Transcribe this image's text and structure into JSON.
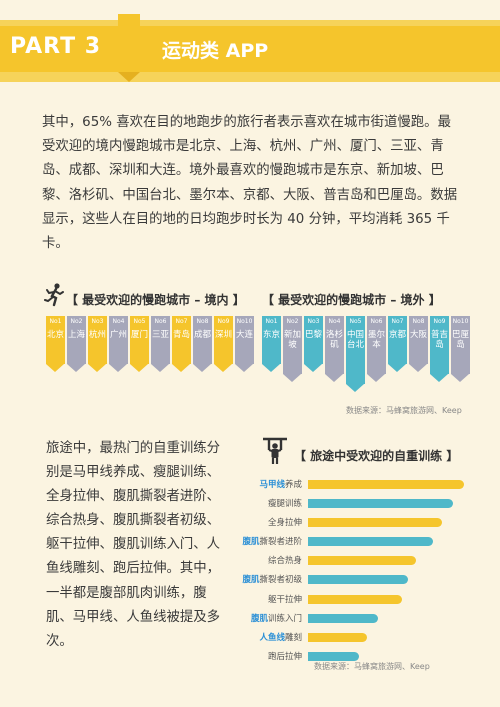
{
  "header": {
    "part": "PART 3",
    "title": "运动类 APP"
  },
  "intro_text": "其中，65% 喜欢在目的地跑步的旅行者表示喜欢在城市街道慢跑。最受欢迎的境内慢跑城市是北京、上海、杭州、广州、厦门、三亚、青岛、成都、深圳和大连。境外最喜欢的慢跑城市是东京、新加坡、巴黎、洛杉矶、中国台北、墨尔本、京都、大阪、普吉岛和巴厘岛。数据显示，这些人在目的地的日均跑步时长为 40 分钟，平均消耗 365 千卡。",
  "domestic": {
    "title": "【 最受欢迎的慢跑城市 – 境内 】",
    "icon": "runner-icon",
    "items": [
      {
        "no": "No1",
        "name": "北京",
        "color": "#f5c52c"
      },
      {
        "no": "No2",
        "name": "上海",
        "color": "#a6a7ba"
      },
      {
        "no": "No3",
        "name": "杭州",
        "color": "#f5c52c"
      },
      {
        "no": "No4",
        "name": "广州",
        "color": "#a6a7ba"
      },
      {
        "no": "No5",
        "name": "厦门",
        "color": "#f5c52c"
      },
      {
        "no": "No6",
        "name": "三亚",
        "color": "#a6a7ba"
      },
      {
        "no": "No7",
        "name": "青岛",
        "color": "#f5c52c"
      },
      {
        "no": "No8",
        "name": "成都",
        "color": "#a6a7ba"
      },
      {
        "no": "No9",
        "name": "深圳",
        "color": "#f5c52c"
      },
      {
        "no": "No10",
        "name": "大连",
        "color": "#a6a7ba"
      }
    ]
  },
  "overseas": {
    "title": "【 最受欢迎的慢跑城市 – 境外 】",
    "items": [
      {
        "no": "No1",
        "name": "东京",
        "color": "#4fb8c9"
      },
      {
        "no": "No2",
        "name": "新加坡",
        "color": "#a6a7ba"
      },
      {
        "no": "No3",
        "name": "巴黎",
        "color": "#4fb8c9"
      },
      {
        "no": "No4",
        "name": "洛杉矶",
        "color": "#a6a7ba"
      },
      {
        "no": "No5",
        "name": "中国台北",
        "color": "#4fb8c9"
      },
      {
        "no": "No6",
        "name": "墨尔本",
        "color": "#a6a7ba"
      },
      {
        "no": "No7",
        "name": "京都",
        "color": "#4fb8c9"
      },
      {
        "no": "No8",
        "name": "大阪",
        "color": "#a6a7ba"
      },
      {
        "no": "No9",
        "name": "普吉岛",
        "color": "#4fb8c9"
      },
      {
        "no": "No10",
        "name": "巴厘岛",
        "color": "#a6a7ba"
      }
    ]
  },
  "source1": "数据来源：马蜂窝旅游网、Keep",
  "body_text": "旅途中，最热门的自重训练分别是马甲线养成、瘦腿训练、全身拉伸、腹肌撕裂者进阶、综合热身、腹肌撕裂者初级、躯干拉伸、腹肌训练入门、人鱼线雕刻、跑后拉伸。其中，一半都是腹部肌肉训练，腹肌、马甲线、人鱼线被提及多次。",
  "training": {
    "title": "【 旅途中受欢迎的自重训练 】",
    "icon": "pullup-icon",
    "items": [
      {
        "hl": "马甲线",
        "rest": "养成",
        "value": 100,
        "color": "#f5c52c"
      },
      {
        "hl": "",
        "rest": "瘦腿训练",
        "value": 93,
        "color": "#4fb8c9"
      },
      {
        "hl": "",
        "rest": "全身拉伸",
        "value": 86,
        "color": "#f5c52c"
      },
      {
        "hl": "腹肌",
        "rest": "撕裂者进阶",
        "value": 80,
        "color": "#4fb8c9"
      },
      {
        "hl": "",
        "rest": "综合热身",
        "value": 69,
        "color": "#f5c52c"
      },
      {
        "hl": "腹肌",
        "rest": "撕裂者初级",
        "value": 64,
        "color": "#4fb8c9"
      },
      {
        "hl": "",
        "rest": "躯干拉伸",
        "value": 60,
        "color": "#f5c52c"
      },
      {
        "hl": "腹肌",
        "rest": "训练入门",
        "value": 45,
        "color": "#4fb8c9"
      },
      {
        "hl": "人鱼线",
        "rest": "雕刻",
        "value": 38,
        "color": "#f5c52c"
      },
      {
        "hl": "",
        "rest": "跑后拉伸",
        "value": 33,
        "color": "#4fb8c9"
      }
    ]
  },
  "source2": "数据来源：马蜂窝旅游网、Keep"
}
